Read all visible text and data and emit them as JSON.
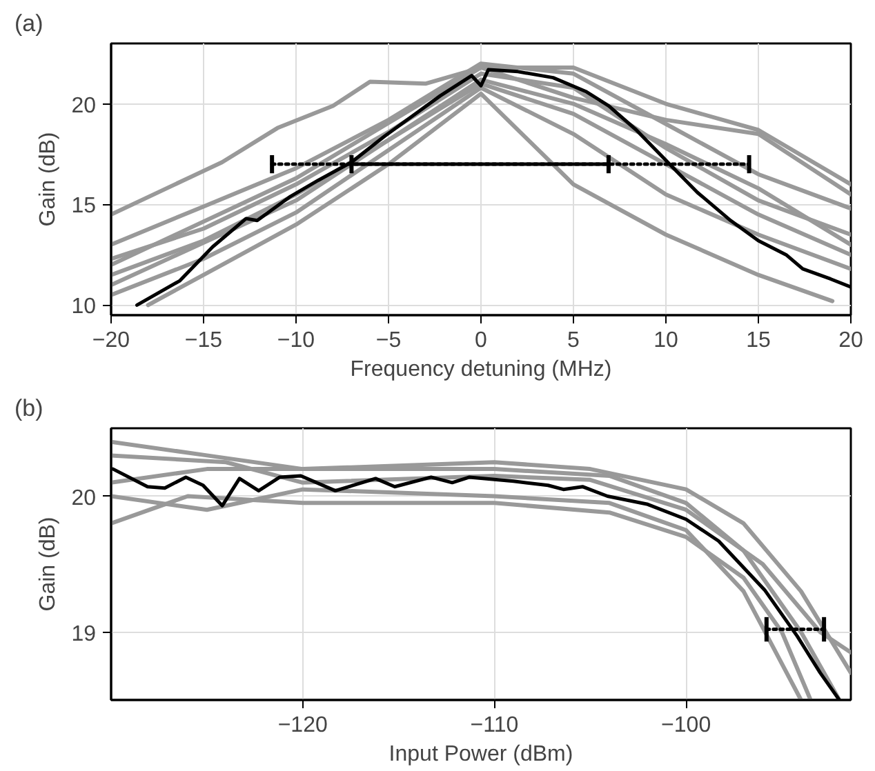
{
  "chart_data": [
    {
      "type": "line",
      "title": "(a)",
      "xlabel": "Frequency detuning (MHz)",
      "ylabel": "Gain (dB)",
      "xlim": [
        -20,
        20
      ],
      "ylim": [
        9.5,
        23
      ],
      "xticks": [
        {
          "value": -20,
          "label": "−20"
        },
        {
          "value": -15,
          "label": "−15"
        },
        {
          "value": -10,
          "label": "−10"
        },
        {
          "value": -5,
          "label": "−5"
        },
        0,
        5,
        10,
        15,
        20
      ],
      "yticks": [
        10,
        15,
        20
      ],
      "grid": true,
      "marker": "none",
      "line_style": "solid",
      "series": [
        {
          "color": "#999999",
          "x": [
            -20,
            -17,
            -14,
            -11,
            -8,
            -6,
            -3,
            0,
            5,
            10,
            15,
            20
          ],
          "values": [
            14.5,
            15.8,
            17.1,
            18.8,
            19.9,
            21.1,
            21.0,
            21.8,
            20.3,
            19.2,
            18.5,
            15.5
          ]
        },
        {
          "color": "#999999",
          "x": [
            -20,
            -15,
            -10,
            -5,
            0,
            5,
            10,
            15,
            20
          ],
          "values": [
            13.0,
            14.9,
            16.8,
            19.2,
            22.0,
            21.5,
            19.0,
            16.5,
            14.8
          ]
        },
        {
          "color": "#999999",
          "x": [
            -20,
            -15,
            -10,
            -5,
            0,
            5,
            10,
            15,
            20
          ],
          "values": [
            12.3,
            13.8,
            16.0,
            18.6,
            21.5,
            20.8,
            17.8,
            15.2,
            13.5
          ]
        },
        {
          "color": "#999999",
          "x": [
            -20,
            -15,
            -10,
            -5,
            0,
            5,
            10,
            15,
            20
          ],
          "values": [
            11.5,
            13.2,
            15.5,
            18.2,
            21.0,
            19.5,
            17.0,
            14.5,
            12.5
          ]
        },
        {
          "color": "#999999",
          "x": [
            -20,
            -15,
            -10,
            -5,
            0,
            5,
            10,
            15,
            20
          ],
          "values": [
            10.5,
            12.3,
            14.6,
            17.7,
            20.8,
            18.5,
            15.5,
            13.5,
            11.8
          ]
        },
        {
          "color": "#999999",
          "x": [
            -18,
            -15,
            -10,
            -5,
            0,
            5,
            10,
            15,
            19
          ],
          "values": [
            10.0,
            11.5,
            14.0,
            17.0,
            20.5,
            16.0,
            13.5,
            11.5,
            10.2
          ]
        },
        {
          "color": "#999999",
          "x": [
            -20,
            -10,
            0,
            5,
            10,
            15,
            20
          ],
          "values": [
            12.0,
            16.3,
            21.8,
            21.8,
            20.0,
            18.7,
            16.0
          ]
        },
        {
          "color": "#999999",
          "x": [
            -20,
            -10,
            0,
            5,
            10,
            15,
            20
          ],
          "values": [
            11.0,
            15.2,
            21.2,
            20.0,
            18.0,
            15.8,
            13.0
          ]
        },
        {
          "color": "#000000",
          "x": [
            -18.6,
            -16.3,
            -14.5,
            -12.7,
            -12.1,
            -10.3,
            -8.8,
            -7.0,
            -5.2,
            -3.4,
            -2.2,
            -0.5,
            0,
            0.4,
            2.0,
            3.9,
            5.7,
            6.9,
            8.4,
            10.2,
            11.7,
            13.5,
            15.0,
            16.5,
            17.4,
            18.9,
            20
          ],
          "values": [
            10.0,
            11.2,
            12.9,
            14.3,
            14.2,
            15.4,
            16.2,
            17.1,
            18.4,
            19.6,
            20.4,
            21.4,
            20.9,
            21.7,
            21.6,
            21.3,
            20.6,
            19.9,
            18.7,
            17.0,
            15.6,
            14.2,
            13.2,
            12.5,
            11.8,
            11.3,
            10.9
          ]
        },
        {
          "line_style": "dotted",
          "color": "#000000",
          "x": [
            -11.3,
            14.5
          ],
          "values": [
            17,
            17
          ],
          "errors": [
            0.45,
            0.45
          ]
        },
        {
          "line_style": "solid",
          "color": "#000000",
          "x": [
            -7,
            6.9
          ],
          "values": [
            17,
            17
          ],
          "errors": [
            0.45,
            0.45
          ]
        }
      ]
    },
    {
      "type": "line",
      "title": "(b)",
      "xlabel": "Input Power (dBm)",
      "ylabel": "Gain (dB)",
      "xlim": [
        -130,
        -91.4
      ],
      "ylim": [
        18.5,
        20.5
      ],
      "xticks": [
        {
          "value": -120,
          "label": "−120"
        },
        {
          "value": -110,
          "label": "−110"
        },
        {
          "value": -100,
          "label": "−100"
        }
      ],
      "yticks": [
        19,
        20
      ],
      "grid": true,
      "marker": "none",
      "line_style": "solid",
      "series": [
        {
          "color": "#999999",
          "x": [
            -130,
            -125,
            -120,
            -110,
            -105,
            -100,
            -97,
            -94,
            -91.4
          ],
          "values": [
            20.4,
            20.3,
            20.2,
            20.25,
            20.2,
            20.05,
            19.8,
            19.3,
            18.7
          ]
        },
        {
          "color": "#999999",
          "x": [
            -130,
            -125,
            -120,
            -110,
            -104,
            -100,
            -97,
            -94,
            -92
          ],
          "values": [
            20.1,
            20.2,
            20.2,
            20.2,
            20.15,
            19.95,
            19.6,
            19.0,
            18.5
          ]
        },
        {
          "color": "#999999",
          "x": [
            -130,
            -126,
            -120,
            -110,
            -104,
            -100,
            -97,
            -95,
            -93.5
          ],
          "values": [
            19.8,
            20.0,
            19.95,
            19.95,
            19.88,
            19.7,
            19.4,
            19.0,
            18.5
          ]
        },
        {
          "color": "#999999",
          "x": [
            -130,
            -125,
            -120,
            -110,
            -104,
            -100,
            -97,
            -95.5,
            -94
          ],
          "values": [
            20.0,
            19.9,
            20.05,
            20.0,
            19.95,
            19.75,
            19.3,
            18.9,
            18.5
          ]
        },
        {
          "color": "#999999",
          "x": [
            -130,
            -124,
            -120,
            -110,
            -105,
            -100,
            -96,
            -93,
            -91.4
          ],
          "values": [
            20.3,
            20.25,
            20.1,
            20.15,
            20.12,
            19.9,
            19.5,
            19.0,
            18.85
          ]
        },
        {
          "color": "#000000",
          "x": [
            -129.9,
            -128.1,
            -127.2,
            -126.1,
            -125.2,
            -124.2,
            -123.3,
            -122.3,
            -121.2,
            -120.1,
            -118.3,
            -116.2,
            -115.2,
            -113.3,
            -112.2,
            -111.3,
            -109.0,
            -107.2,
            -106.4,
            -105.4,
            -104.1,
            -102.0,
            -100,
            -98.3,
            -95.9,
            -94.2,
            -93.0,
            -92.0
          ],
          "values": [
            20.2,
            20.07,
            20.06,
            20.14,
            20.08,
            19.93,
            20.13,
            20.04,
            20.14,
            20.15,
            20.04,
            20.13,
            20.07,
            20.14,
            20.1,
            20.14,
            20.11,
            20.08,
            20.05,
            20.07,
            20.0,
            19.94,
            19.83,
            19.67,
            19.31,
            18.97,
            18.7,
            18.5
          ]
        },
        {
          "line_style": "dotted",
          "color": "#000000",
          "x": [
            -95.8,
            -92.8
          ],
          "values": [
            19.02,
            19.02
          ],
          "errors": [
            0.09,
            0.09
          ]
        }
      ]
    }
  ]
}
